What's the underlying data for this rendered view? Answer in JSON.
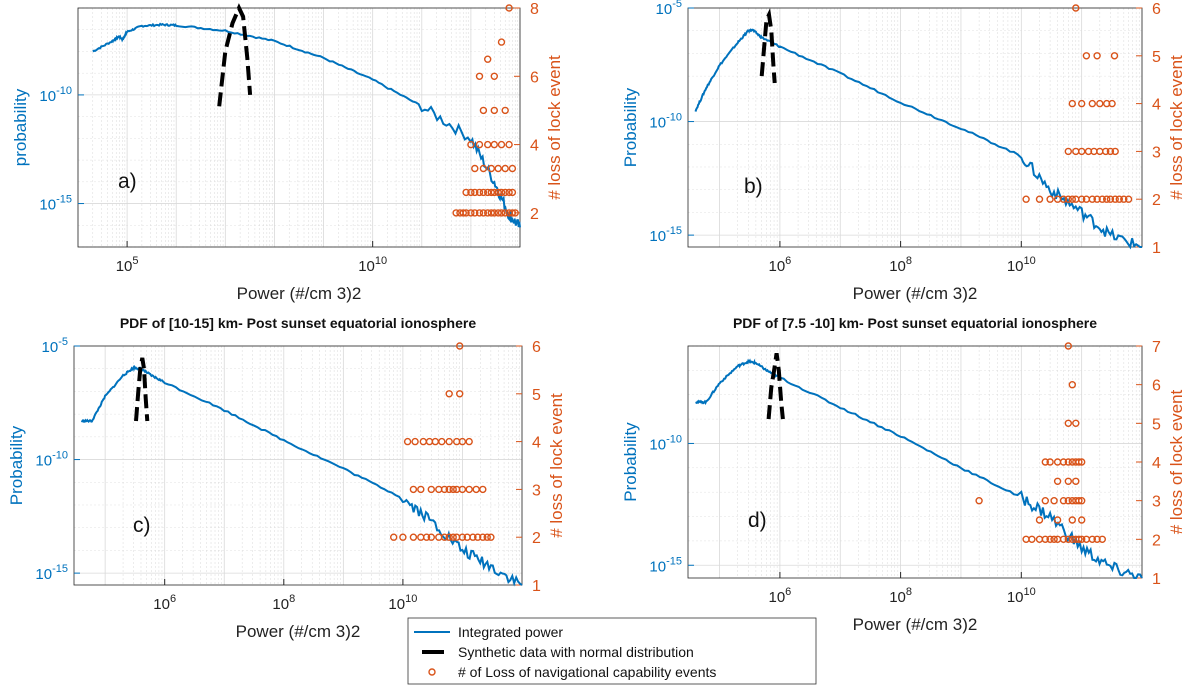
{
  "colors": {
    "left_axis": "#0072BD",
    "right_axis": "#D95319",
    "curve": "#0072BD",
    "synthetic": "#000000",
    "events": "#D95319",
    "grid": "#d9d9d9",
    "frame": "#262626"
  },
  "legend": {
    "placement": "bottom-center",
    "items": [
      {
        "label": "Integrated power",
        "style": "line"
      },
      {
        "label": "Synthetic data with normal distribution",
        "style": "dashed"
      },
      {
        "label": "# of Loss of navigational capability events",
        "style": "circle"
      }
    ]
  },
  "chart_data": [
    {
      "type": "line",
      "panel_label": "a)",
      "title": "",
      "xlabel": "Power (#/cm  3)2",
      "ylabel": "probability",
      "y2label": "# loss of lock event",
      "xscale": "log",
      "yscale": "log",
      "xlim": [
        10000.0,
        10000000000000.0
      ],
      "ylim": [
        1e-17,
        1e-06
      ],
      "y2lim": [
        1,
        8
      ],
      "grid": true,
      "x_ticks": [
        {
          "exp": "5",
          "v": 100000.0
        },
        {
          "exp": "10",
          "v": 10000000000.0
        }
      ],
      "y_ticks": [
        {
          "exp": "-10",
          "v": 1e-10
        },
        {
          "exp": "-15",
          "v": 1e-15
        }
      ],
      "y2_ticks": [
        "2",
        "4",
        "6",
        "8"
      ],
      "curve": [
        [
          20000.0,
          1e-08
        ],
        [
          50000.0,
          3e-08
        ],
        [
          70000.0,
          5e-08
        ],
        [
          80000.0,
          3.5e-08
        ],
        [
          100000.0,
          8e-08
        ],
        [
          200000.0,
          1.5e-07
        ],
        [
          500000.0,
          1.7e-07
        ],
        [
          1000000.0,
          1.6e-07
        ],
        [
          10000000.0,
          9e-08
        ],
        [
          100000000.0,
          3e-08
        ],
        [
          1000000000.0,
          5e-09
        ],
        [
          10000000000.0,
          5e-10
        ],
        [
          100000000000.0,
          3e-11
        ],
        [
          1000000000000.0,
          1e-12
        ],
        [
          3000000000000.0,
          1e-14
        ],
        [
          6000000000000.0,
          3e-16
        ],
        [
          10000000000000.0,
          8e-17
        ]
      ],
      "synthetic": [
        [
          7500000.0,
          3e-11
        ],
        [
          10000000.0,
          1e-08
        ],
        [
          14000000.0,
          2e-07
        ],
        [
          19000000.0,
          1e-06
        ],
        [
          23000000.0,
          4e-07
        ],
        [
          28000000.0,
          5e-09
        ],
        [
          32000000.0,
          1e-10
        ]
      ],
      "events": [
        {
          "y": 2,
          "x": [
            500000000000.0,
            600000000000.0,
            700000000000.0,
            800000000000.0,
            1000000000000.0,
            1200000000000.0,
            1500000000000.0,
            1800000000000.0,
            2200000000000.0,
            2600000000000.0,
            3000000000000.0,
            3600000000000.0,
            4200000000000.0,
            5000000000000.0,
            6000000000000.0,
            7000000000000.0,
            8000000000000.0
          ]
        },
        {
          "y": 2.6,
          "x": [
            800000000000.0,
            1000000000000.0,
            1200000000000.0,
            1500000000000.0,
            1800000000000.0,
            2200000000000.0,
            2600000000000.0,
            3000000000000.0,
            3600000000000.0,
            4200000000000.0,
            5000000000000.0,
            6000000000000.0,
            7000000000000.0
          ]
        },
        {
          "y": 3.3,
          "x": [
            1200000000000.0,
            1800000000000.0,
            2600000000000.0,
            3600000000000.0,
            5000000000000.0,
            7000000000000.0
          ]
        },
        {
          "y": 4,
          "x": [
            1000000000000.0,
            1500000000000.0,
            2200000000000.0,
            3000000000000.0,
            4200000000000.0,
            6000000000000.0
          ]
        },
        {
          "y": 5,
          "x": [
            1800000000000.0,
            3000000000000.0,
            5000000000000.0
          ]
        },
        {
          "y": 6,
          "x": [
            1500000000000.0,
            3000000000000.0
          ]
        },
        {
          "y": 6.5,
          "x": [
            2200000000000.0
          ]
        },
        {
          "y": 7,
          "x": [
            4200000000000.0
          ]
        },
        {
          "y": 8,
          "x": [
            6000000000000.0
          ]
        }
      ]
    },
    {
      "type": "line",
      "panel_label": "b)",
      "title": "",
      "xlabel": "Power (#/cm  3)2",
      "ylabel": "Probability",
      "y2label": "# loss of lock event",
      "xscale": "log",
      "yscale": "log",
      "xlim": [
        30000.0,
        1000000000000.0
      ],
      "ylim": [
        3e-16,
        1e-05
      ],
      "y2lim": [
        1,
        6
      ],
      "grid": true,
      "x_ticks": [
        {
          "exp": "6",
          "v": 1000000.0
        },
        {
          "exp": "8",
          "v": 100000000.0
        },
        {
          "exp": "10",
          "v": 10000000000.0
        }
      ],
      "y_ticks": [
        {
          "exp": "-5",
          "v": 1e-05
        },
        {
          "exp": "-10",
          "v": 1e-10
        },
        {
          "exp": "-15",
          "v": 1e-15
        }
      ],
      "y2_ticks": [
        "1",
        "2",
        "3",
        "4",
        "5",
        "6"
      ],
      "curve": [
        [
          40000.0,
          3e-10
        ],
        [
          60000.0,
          3e-09
        ],
        [
          100000.0,
          3e-08
        ],
        [
          200000.0,
          3e-07
        ],
        [
          300000.0,
          1e-06
        ],
        [
          350000.0,
          1.1e-06
        ],
        [
          500000.0,
          5e-07
        ],
        [
          1000000.0,
          2e-07
        ],
        [
          10000000.0,
          1.3e-08
        ],
        [
          100000000.0,
          7e-10
        ],
        [
          1000000000.0,
          5e-11
        ],
        [
          10000000000.0,
          3e-12
        ],
        [
          30000000000.0,
          1e-13
        ],
        [
          100000000000.0,
          1e-14
        ],
        [
          300000000000.0,
          1e-15
        ],
        [
          1000000000000.0,
          3e-16
        ]
      ],
      "synthetic": [
        [
          500000.0,
          1e-08
        ],
        [
          550000.0,
          2e-07
        ],
        [
          600000.0,
          3e-06
        ],
        [
          660000.0,
          5e-06
        ],
        [
          720000.0,
          1e-06
        ],
        [
          780000.0,
          3e-08
        ],
        [
          820000.0,
          5e-09
        ]
      ],
      "events": [
        {
          "y": 2,
          "x": [
            12000000000.0,
            20000000000.0,
            30000000000.0,
            40000000000.0,
            50000000000.0,
            60000000000.0,
            70000000000.0,
            80000000000.0,
            100000000000.0,
            120000000000.0,
            150000000000.0,
            180000000000.0,
            220000000000.0,
            260000000000.0,
            300000000000.0,
            360000000000.0,
            420000000000.0,
            500000000000.0,
            600000000000.0
          ]
        },
        {
          "y": 3,
          "x": [
            60000000000.0,
            80000000000.0,
            100000000000.0,
            130000000000.0,
            160000000000.0,
            200000000000.0,
            250000000000.0,
            300000000000.0,
            360000000000.0
          ]
        },
        {
          "y": 4,
          "x": [
            70000000000.0,
            100000000000.0,
            150000000000.0,
            200000000000.0,
            260000000000.0,
            320000000000.0
          ]
        },
        {
          "y": 5,
          "x": [
            120000000000.0,
            180000000000.0,
            350000000000.0
          ]
        },
        {
          "y": 6,
          "x": [
            80000000000.0
          ]
        }
      ]
    },
    {
      "type": "line",
      "panel_label": "c)",
      "title": "PDF of [10-15] km- Post sunset equatorial ionosphere",
      "xlabel": "Power (#/cm  3)2",
      "ylabel": "Probability",
      "y2label": "# loss of lock event",
      "xscale": "log",
      "yscale": "log",
      "xlim": [
        30000.0,
        1000000000000.0
      ],
      "ylim": [
        3e-16,
        1e-05
      ],
      "y2lim": [
        1,
        6
      ],
      "grid": true,
      "x_ticks": [
        {
          "exp": "6",
          "v": 1000000.0
        },
        {
          "exp": "8",
          "v": 100000000.0
        },
        {
          "exp": "10",
          "v": 10000000000.0
        }
      ],
      "y_ticks": [
        {
          "exp": "-5",
          "v": 1e-05
        },
        {
          "exp": "-10",
          "v": 1e-10
        },
        {
          "exp": "-15",
          "v": 1e-15
        }
      ],
      "y2_ticks": [
        "1",
        "2",
        "3",
        "4",
        "5",
        "6"
      ],
      "curve": [
        [
          40000.0,
          5e-09
        ],
        [
          60000.0,
          5e-09
        ],
        [
          100000.0,
          6e-08
        ],
        [
          200000.0,
          5e-07
        ],
        [
          300000.0,
          1.1e-06
        ],
        [
          400000.0,
          1e-06
        ],
        [
          600000.0,
          5e-07
        ],
        [
          1000000.0,
          2.5e-07
        ],
        [
          10000000.0,
          1.5e-08
        ],
        [
          100000000.0,
          7e-10
        ],
        [
          1000000000.0,
          4e-11
        ],
        [
          10000000000.0,
          2e-12
        ],
        [
          30000000000.0,
          2e-13
        ],
        [
          100000000000.0,
          1e-14
        ],
        [
          300000000000.0,
          2e-15
        ],
        [
          1000000000000.0,
          3e-16
        ]
      ],
      "synthetic": [
        [
          330000.0,
          5e-09
        ],
        [
          360000.0,
          1e-07
        ],
        [
          390000.0,
          1e-06
        ],
        [
          420000.0,
          3e-06
        ],
        [
          450000.0,
          1e-06
        ],
        [
          480000.0,
          5e-08
        ],
        [
          510000.0,
          5e-09
        ]
      ],
      "events": [
        {
          "y": 2,
          "x": [
            7000000000.0,
            10000000000.0,
            15000000000.0,
            20000000000.0,
            25000000000.0,
            30000000000.0,
            40000000000.0,
            50000000000.0,
            60000000000.0,
            70000000000.0,
            80000000000.0,
            100000000000.0,
            120000000000.0,
            150000000000.0,
            180000000000.0,
            220000000000.0,
            260000000000.0,
            300000000000.0
          ]
        },
        {
          "y": 3,
          "x": [
            15000000000.0,
            20000000000.0,
            30000000000.0,
            40000000000.0,
            50000000000.0,
            60000000000.0,
            70000000000.0,
            80000000000.0,
            100000000000.0,
            130000000000.0,
            170000000000.0,
            220000000000.0
          ]
        },
        {
          "y": 4,
          "x": [
            12000000000.0,
            16000000000.0,
            22000000000.0,
            28000000000.0,
            35000000000.0,
            45000000000.0,
            60000000000.0,
            80000000000.0,
            100000000000.0,
            130000000000.0
          ]
        },
        {
          "y": 5,
          "x": [
            60000000000.0,
            90000000000.0
          ]
        },
        {
          "y": 6,
          "x": [
            90000000000.0
          ]
        }
      ]
    },
    {
      "type": "line",
      "panel_label": "d)",
      "title": "PDF of [7.5 -10] km- Post sunset equatorial ionosphere",
      "xlabel": "Power (#/cm  3)2",
      "ylabel": "Probability",
      "y2label": "# loss of lock event",
      "xscale": "log",
      "yscale": "log",
      "xlim": [
        30000.0,
        1000000000000.0
      ],
      "ylim": [
        3e-16,
        1e-06
      ],
      "y2lim": [
        1,
        7
      ],
      "grid": true,
      "x_ticks": [
        {
          "exp": "6",
          "v": 1000000.0
        },
        {
          "exp": "8",
          "v": 100000000.0
        },
        {
          "exp": "10",
          "v": 10000000000.0
        }
      ],
      "y_ticks": [
        {
          "exp": "-10",
          "v": 1e-10
        },
        {
          "exp": "-15",
          "v": 1e-15
        }
      ],
      "y2_ticks": [
        "1",
        "2",
        "3",
        "4",
        "5",
        "6",
        "7"
      ],
      "curve": [
        [
          40000.0,
          5e-09
        ],
        [
          60000.0,
          5e-09
        ],
        [
          100000.0,
          3e-08
        ],
        [
          200000.0,
          1.5e-07
        ],
        [
          300000.0,
          2.3e-07
        ],
        [
          400000.0,
          2e-07
        ],
        [
          600000.0,
          1e-07
        ],
        [
          1000000.0,
          5e-08
        ],
        [
          10000000.0,
          3e-09
        ],
        [
          100000000.0,
          2e-10
        ],
        [
          1000000000.0,
          1e-11
        ],
        [
          10000000000.0,
          6e-13
        ],
        [
          30000000000.0,
          1e-13
        ],
        [
          100000000000.0,
          5e-15
        ],
        [
          300000000000.0,
          8e-16
        ],
        [
          1000000000000.0,
          3e-16
        ]
      ],
      "synthetic": [
        [
          650000.0,
          1e-09
        ],
        [
          720000.0,
          2e-08
        ],
        [
          800000.0,
          1e-07
        ],
        [
          880000.0,
          5e-07
        ],
        [
          960000.0,
          1e-07
        ],
        [
          1050000.0,
          5e-09
        ],
        [
          1120000.0,
          1e-09
        ]
      ],
      "events": [
        {
          "y": 2,
          "x": [
            12000000000.0,
            15000000000.0,
            20000000000.0,
            25000000000.0,
            30000000000.0,
            35000000000.0,
            40000000000.0,
            50000000000.0,
            60000000000.0,
            70000000000.0,
            80000000000.0,
            90000000000.0,
            100000000000.0,
            120000000000.0,
            150000000000.0,
            180000000000.0,
            220000000000.0
          ]
        },
        {
          "y": 2.5,
          "x": [
            20000000000.0,
            40000000000.0,
            70000000000.0,
            100000000000.0
          ]
        },
        {
          "y": 3,
          "x": [
            2000000000.0,
            25000000000.0,
            35000000000.0,
            50000000000.0,
            60000000000.0,
            70000000000.0,
            80000000000.0,
            90000000000.0,
            100000000000.0
          ]
        },
        {
          "y": 3.5,
          "x": [
            40000000000.0,
            60000000000.0,
            80000000000.0
          ]
        },
        {
          "y": 4,
          "x": [
            25000000000.0,
            30000000000.0,
            40000000000.0,
            50000000000.0,
            60000000000.0,
            70000000000.0,
            80000000000.0,
            90000000000.0,
            100000000000.0
          ]
        },
        {
          "y": 5,
          "x": [
            60000000000.0,
            80000000000.0
          ]
        },
        {
          "y": 6,
          "x": [
            70000000000.0
          ]
        },
        {
          "y": 7,
          "x": [
            60000000000.0
          ]
        }
      ]
    }
  ]
}
